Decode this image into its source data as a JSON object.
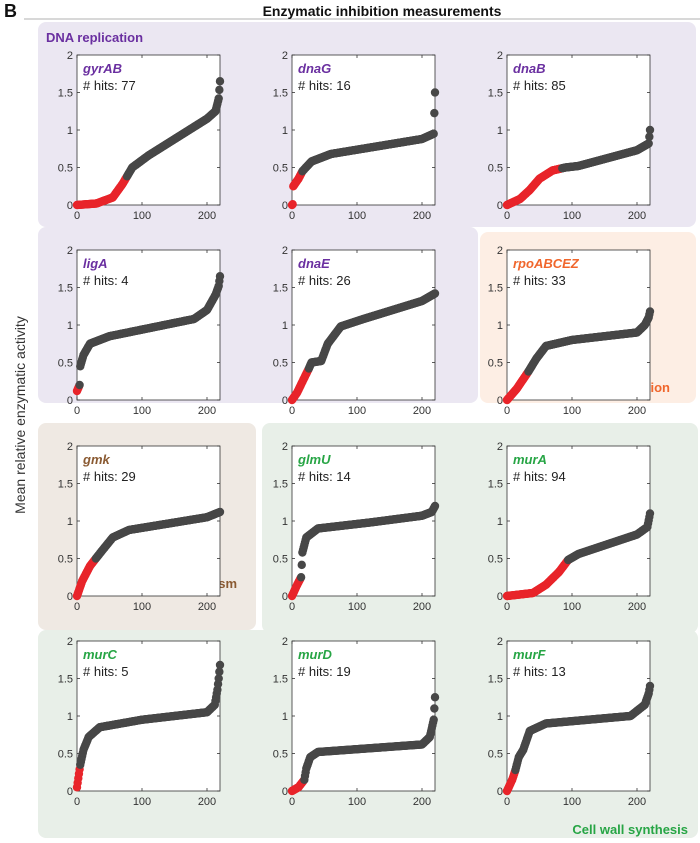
{
  "figure": {
    "panel_letter": "B",
    "title": "Enzymatic inhibition measurements",
    "ylabel": "Mean relative enzymatic activity"
  },
  "groups": [
    {
      "key": "dna",
      "label": "DNA replication",
      "color": "#6a2fa0",
      "bg": "#ebe7f2"
    },
    {
      "key": "txn",
      "label": "Transcription",
      "color": "#f0662c",
      "bg": "#fdeee4"
    },
    {
      "key": "met",
      "label": "Metabolism",
      "color": "#8a5a32",
      "bg": "#efe9e3"
    },
    {
      "key": "cell",
      "label": "Cell wall synthesis",
      "color": "#27a545",
      "bg": "#e8efe8"
    }
  ],
  "colors": {
    "hit": "#e8242a",
    "nonhit": "#474747",
    "axis": "#333333",
    "tick_text": "#333333"
  },
  "chart_data": [
    {
      "type": "scatter",
      "gene": "gyrAB",
      "group": "dna",
      "hits_label": "# hits: 77",
      "n": 220,
      "hits": 77,
      "xlim": [
        0,
        220
      ],
      "ylim": [
        0,
        2
      ],
      "xticks": [
        0,
        100,
        200
      ],
      "yticks": [
        0,
        0.5,
        1,
        1.5,
        2
      ],
      "anchors": [
        [
          0,
          0
        ],
        [
          30,
          0.02
        ],
        [
          55,
          0.1
        ],
        [
          70,
          0.28
        ],
        [
          85,
          0.5
        ],
        [
          110,
          0.66
        ],
        [
          200,
          1.15
        ],
        [
          213,
          1.25
        ],
        [
          216,
          1.35
        ],
        [
          218,
          1.42
        ],
        [
          220,
          1.65
        ]
      ]
    },
    {
      "type": "scatter",
      "gene": "dnaG",
      "group": "dna",
      "hits_label": "# hits: 16",
      "n": 220,
      "hits": 16,
      "xlim": [
        0,
        220
      ],
      "ylim": [
        0,
        2
      ],
      "xticks": [
        0,
        100,
        200
      ],
      "yticks": [
        0,
        0.5,
        1,
        1.5,
        2
      ],
      "anchors": [
        [
          0,
          0
        ],
        [
          1,
          0.01
        ],
        [
          2,
          0.25
        ],
        [
          10,
          0.35
        ],
        [
          16,
          0.45
        ],
        [
          30,
          0.58
        ],
        [
          60,
          0.68
        ],
        [
          200,
          0.88
        ],
        [
          218,
          0.95
        ],
        [
          220,
          1.5
        ]
      ]
    },
    {
      "type": "scatter",
      "gene": "dnaB",
      "group": "dna",
      "hits_label": "# hits: 85",
      "n": 220,
      "hits": 85,
      "xlim": [
        0,
        220
      ],
      "ylim": [
        0,
        2
      ],
      "xticks": [
        0,
        100,
        200
      ],
      "yticks": [
        0,
        0.5,
        1,
        1.5,
        2
      ],
      "anchors": [
        [
          0,
          0
        ],
        [
          20,
          0.08
        ],
        [
          35,
          0.2
        ],
        [
          50,
          0.35
        ],
        [
          70,
          0.46
        ],
        [
          90,
          0.5
        ],
        [
          110,
          0.52
        ],
        [
          200,
          0.73
        ],
        [
          218,
          0.82
        ],
        [
          220,
          1.0
        ]
      ]
    },
    {
      "type": "scatter",
      "gene": "ligA",
      "group": "dna",
      "hits_label": "# hits: 4",
      "n": 220,
      "hits": 4,
      "xlim": [
        0,
        220
      ],
      "ylim": [
        0,
        2
      ],
      "xticks": [
        0,
        100,
        200
      ],
      "yticks": [
        0,
        0.5,
        1,
        1.5,
        2
      ],
      "anchors": [
        [
          0,
          0.12
        ],
        [
          4,
          0.2
        ],
        [
          5,
          0.45
        ],
        [
          10,
          0.6
        ],
        [
          20,
          0.75
        ],
        [
          50,
          0.85
        ],
        [
          180,
          1.08
        ],
        [
          200,
          1.2
        ],
        [
          213,
          1.4
        ],
        [
          218,
          1.52
        ],
        [
          220,
          1.65
        ]
      ]
    },
    {
      "type": "scatter",
      "gene": "dnaE",
      "group": "dna",
      "hits_label": "# hits: 26",
      "n": 220,
      "hits": 26,
      "xlim": [
        0,
        220
      ],
      "ylim": [
        0,
        2
      ],
      "xticks": [
        0,
        100,
        200
      ],
      "yticks": [
        0,
        0.5,
        1,
        1.5,
        2
      ],
      "anchors": [
        [
          0,
          0
        ],
        [
          8,
          0.1
        ],
        [
          18,
          0.28
        ],
        [
          26,
          0.42
        ],
        [
          30,
          0.5
        ],
        [
          45,
          0.52
        ],
        [
          55,
          0.75
        ],
        [
          75,
          0.98
        ],
        [
          110,
          1.08
        ],
        [
          200,
          1.32
        ],
        [
          220,
          1.42
        ]
      ]
    },
    {
      "type": "scatter",
      "gene": "rpoABCEZ",
      "group": "txn",
      "hits_label": "# hits: 33",
      "n": 220,
      "hits": 33,
      "xlim": [
        0,
        220
      ],
      "ylim": [
        0,
        2
      ],
      "xticks": [
        0,
        100,
        200
      ],
      "yticks": [
        0,
        0.5,
        1,
        1.5,
        2
      ],
      "anchors": [
        [
          0,
          0
        ],
        [
          15,
          0.15
        ],
        [
          33,
          0.38
        ],
        [
          45,
          0.55
        ],
        [
          60,
          0.72
        ],
        [
          100,
          0.8
        ],
        [
          200,
          0.9
        ],
        [
          212,
          1.0
        ],
        [
          218,
          1.1
        ],
        [
          220,
          1.18
        ]
      ]
    },
    {
      "type": "scatter",
      "gene": "gmk",
      "group": "met",
      "hits_label": "# hits: 29",
      "n": 220,
      "hits": 29,
      "xlim": [
        0,
        220
      ],
      "ylim": [
        0,
        2
      ],
      "xticks": [
        0,
        100,
        200
      ],
      "yticks": [
        0,
        0.5,
        1,
        1.5,
        2
      ],
      "anchors": [
        [
          0,
          0
        ],
        [
          8,
          0.2
        ],
        [
          20,
          0.4
        ],
        [
          29,
          0.5
        ],
        [
          40,
          0.62
        ],
        [
          55,
          0.78
        ],
        [
          80,
          0.88
        ],
        [
          200,
          1.05
        ],
        [
          220,
          1.12
        ]
      ]
    },
    {
      "type": "scatter",
      "gene": "glmU",
      "group": "cell",
      "hits_label": "# hits: 14",
      "n": 220,
      "hits": 14,
      "xlim": [
        0,
        220
      ],
      "ylim": [
        0,
        2
      ],
      "xticks": [
        0,
        100,
        200
      ],
      "yticks": [
        0,
        0.5,
        1,
        1.5,
        2
      ],
      "anchors": [
        [
          0,
          0
        ],
        [
          8,
          0.15
        ],
        [
          14,
          0.25
        ],
        [
          16,
          0.58
        ],
        [
          22,
          0.78
        ],
        [
          40,
          0.9
        ],
        [
          120,
          0.98
        ],
        [
          200,
          1.07
        ],
        [
          215,
          1.12
        ],
        [
          220,
          1.2
        ]
      ]
    },
    {
      "type": "scatter",
      "gene": "murA",
      "group": "cell",
      "hits_label": "# hits: 94",
      "n": 220,
      "hits": 94,
      "xlim": [
        0,
        220
      ],
      "ylim": [
        0,
        2
      ],
      "xticks": [
        0,
        100,
        200
      ],
      "yticks": [
        0,
        0.5,
        1,
        1.5,
        2
      ],
      "anchors": [
        [
          0,
          0
        ],
        [
          40,
          0.04
        ],
        [
          60,
          0.15
        ],
        [
          80,
          0.32
        ],
        [
          94,
          0.48
        ],
        [
          110,
          0.56
        ],
        [
          200,
          0.82
        ],
        [
          216,
          0.92
        ],
        [
          220,
          1.1
        ]
      ]
    },
    {
      "type": "scatter",
      "gene": "murC",
      "group": "cell",
      "hits_label": "# hits: 5",
      "n": 220,
      "hits": 5,
      "xlim": [
        0,
        220
      ],
      "ylim": [
        0,
        2
      ],
      "xticks": [
        0,
        100,
        200
      ],
      "yticks": [
        0,
        0.5,
        1,
        1.5,
        2
      ],
      "anchors": [
        [
          0,
          0.05
        ],
        [
          5,
          0.35
        ],
        [
          10,
          0.55
        ],
        [
          18,
          0.72
        ],
        [
          35,
          0.85
        ],
        [
          100,
          0.95
        ],
        [
          200,
          1.05
        ],
        [
          212,
          1.15
        ],
        [
          216,
          1.35
        ],
        [
          218,
          1.5
        ],
        [
          220,
          1.68
        ]
      ]
    },
    {
      "type": "scatter",
      "gene": "murD",
      "group": "cell",
      "hits_label": "# hits: 19",
      "n": 220,
      "hits": 19,
      "xlim": [
        0,
        220
      ],
      "ylim": [
        0,
        2
      ],
      "xticks": [
        0,
        100,
        200
      ],
      "yticks": [
        0,
        0.5,
        1,
        1.5,
        2
      ],
      "anchors": [
        [
          0,
          0
        ],
        [
          10,
          0.05
        ],
        [
          19,
          0.15
        ],
        [
          22,
          0.3
        ],
        [
          28,
          0.45
        ],
        [
          40,
          0.52
        ],
        [
          200,
          0.62
        ],
        [
          212,
          0.72
        ],
        [
          218,
          0.95
        ],
        [
          220,
          1.25
        ]
      ]
    },
    {
      "type": "scatter",
      "gene": "murF",
      "group": "cell",
      "hits_label": "# hits: 13",
      "n": 220,
      "hits": 13,
      "xlim": [
        0,
        220
      ],
      "ylim": [
        0,
        2
      ],
      "xticks": [
        0,
        100,
        200
      ],
      "yticks": [
        0,
        0.5,
        1,
        1.5,
        2
      ],
      "anchors": [
        [
          0,
          0
        ],
        [
          8,
          0.15
        ],
        [
          13,
          0.28
        ],
        [
          18,
          0.45
        ],
        [
          25,
          0.55
        ],
        [
          35,
          0.8
        ],
        [
          60,
          0.9
        ],
        [
          190,
          1.0
        ],
        [
          212,
          1.15
        ],
        [
          218,
          1.3
        ],
        [
          220,
          1.4
        ]
      ]
    }
  ]
}
